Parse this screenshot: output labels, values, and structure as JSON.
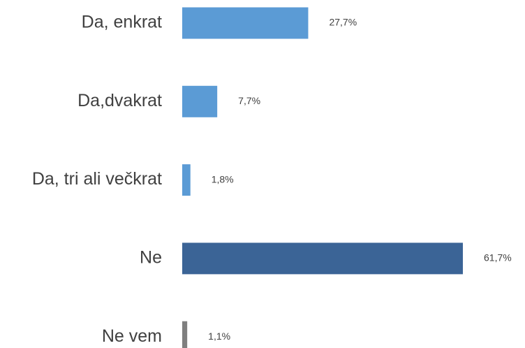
{
  "chart_data": {
    "type": "bar",
    "orientation": "horizontal",
    "categories": [
      "Da, enkrat",
      "Da,dvakrat",
      "Da, tri ali večkrat",
      "Ne",
      "Ne vem"
    ],
    "values": [
      27.7,
      7.7,
      1.8,
      61.7,
      1.1
    ],
    "value_labels": [
      "27,7%",
      "7,7%",
      "1,8%",
      "61,7%",
      "1,1%"
    ],
    "colors": [
      "#5b9bd5",
      "#5b9bd5",
      "#5b9bd5",
      "#3b6496",
      "#7f7f7f"
    ]
  }
}
